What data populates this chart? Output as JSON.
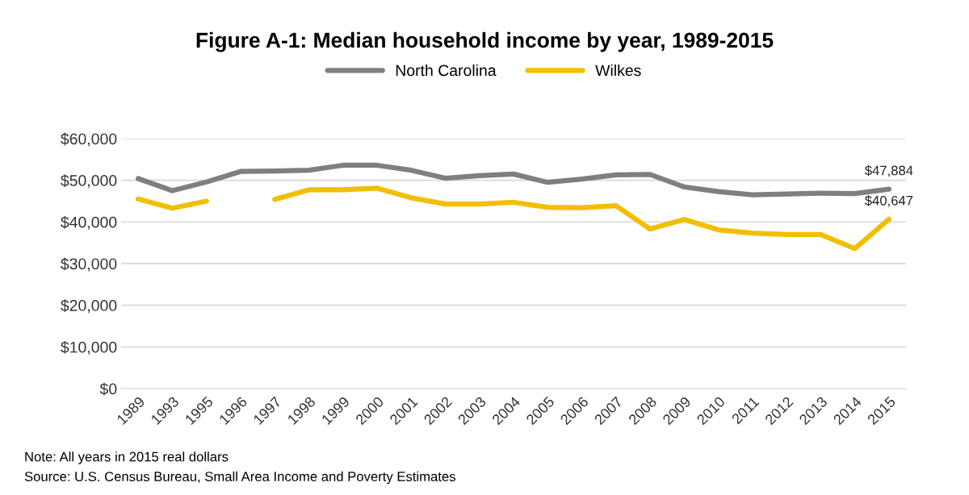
{
  "chart_data": {
    "type": "line",
    "title": "Figure A-1: Median household income by year, 1989-2015",
    "categories": [
      "1989",
      "1993",
      "1995",
      "1996",
      "1997",
      "1998",
      "1999",
      "2000",
      "2001",
      "2002",
      "2003",
      "2004",
      "2005",
      "2006",
      "2007",
      "2008",
      "2009",
      "2010",
      "2011",
      "2012",
      "2013",
      "2014",
      "2015"
    ],
    "series": [
      {
        "name": "North Carolina",
        "color": "#7f7f7f",
        "values": [
          50400,
          47500,
          49600,
          52100,
          52200,
          52400,
          53600,
          53600,
          52400,
          50500,
          51100,
          51500,
          49500,
          50300,
          51300,
          51400,
          48400,
          47300,
          46500,
          46700,
          46900,
          46800,
          47884
        ],
        "value_labels": [
          null,
          null,
          null,
          null,
          null,
          null,
          null,
          null,
          null,
          null,
          null,
          null,
          null,
          null,
          null,
          null,
          null,
          null,
          null,
          null,
          null,
          null,
          "$47,884"
        ]
      },
      {
        "name": "Wilkes",
        "color": "#f2bf00",
        "values": [
          45500,
          43300,
          45000,
          null,
          45400,
          47700,
          47700,
          48100,
          45800,
          44300,
          44300,
          44700,
          43500,
          43400,
          43900,
          38300,
          40600,
          38100,
          37300,
          37000,
          37000,
          33600,
          40647
        ],
        "value_labels": [
          null,
          null,
          null,
          null,
          null,
          null,
          null,
          null,
          null,
          null,
          null,
          null,
          null,
          null,
          null,
          null,
          null,
          null,
          null,
          null,
          null,
          null,
          "$40,647"
        ]
      }
    ],
    "ylim": [
      0,
      60000
    ],
    "yticks": [
      {
        "value": 0,
        "label": "$0"
      },
      {
        "value": 10000,
        "label": "$10,000"
      },
      {
        "value": 20000,
        "label": "$20,000"
      },
      {
        "value": 30000,
        "label": "$30,000"
      },
      {
        "value": 40000,
        "label": "$40,000"
      },
      {
        "value": 50000,
        "label": "$50,000"
      },
      {
        "value": 60000,
        "label": "$60,000"
      }
    ],
    "grid": "y",
    "legend": "top",
    "marker": "none",
    "line_style": "solid",
    "annotations": [
      "Note: All years in 2015 real dollars",
      "Source: U.S. Census Bureau, Small Area Income and Poverty Estimates"
    ]
  }
}
